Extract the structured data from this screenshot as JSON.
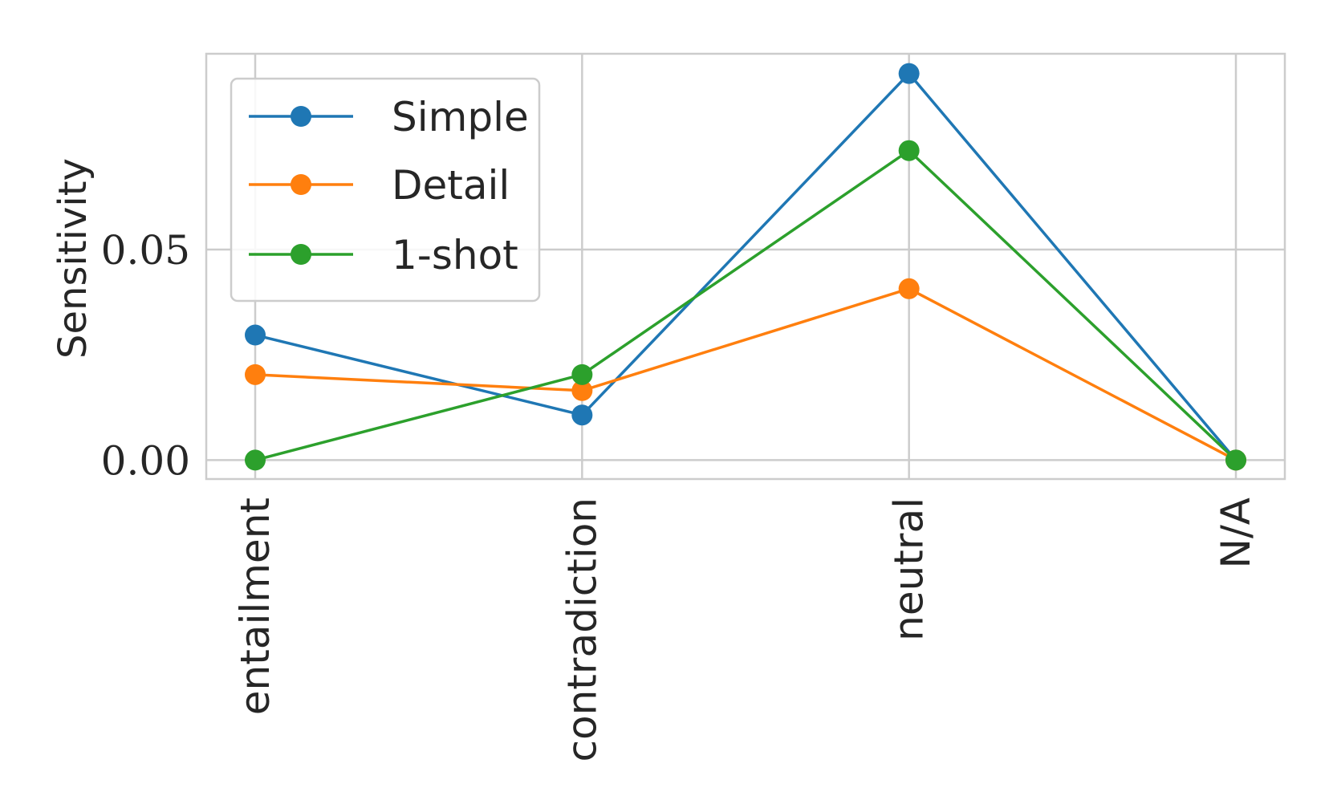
{
  "chart_data": {
    "type": "line",
    "title": "",
    "xlabel": "",
    "ylabel": "Sensitivity",
    "categories": [
      "entailment",
      "contradiction",
      "neutral",
      "N/A"
    ],
    "ylim": [
      -0.0045,
      0.0965
    ],
    "yticks": [
      0.0,
      0.05
    ],
    "ytick_labels": [
      "0.00",
      "0.05"
    ],
    "grid": true,
    "legend_position": "upper-left",
    "series": [
      {
        "name": "Simple",
        "color": "#1f77b4",
        "values": [
          0.0297,
          0.0107,
          0.0918,
          0.0
        ]
      },
      {
        "name": "Detail",
        "color": "#ff7f0e",
        "values": [
          0.0203,
          0.0165,
          0.0407,
          0.0
        ]
      },
      {
        "name": "1-shot",
        "color": "#2ca02c",
        "values": [
          0.0,
          0.0203,
          0.0735,
          0.0
        ]
      }
    ]
  }
}
